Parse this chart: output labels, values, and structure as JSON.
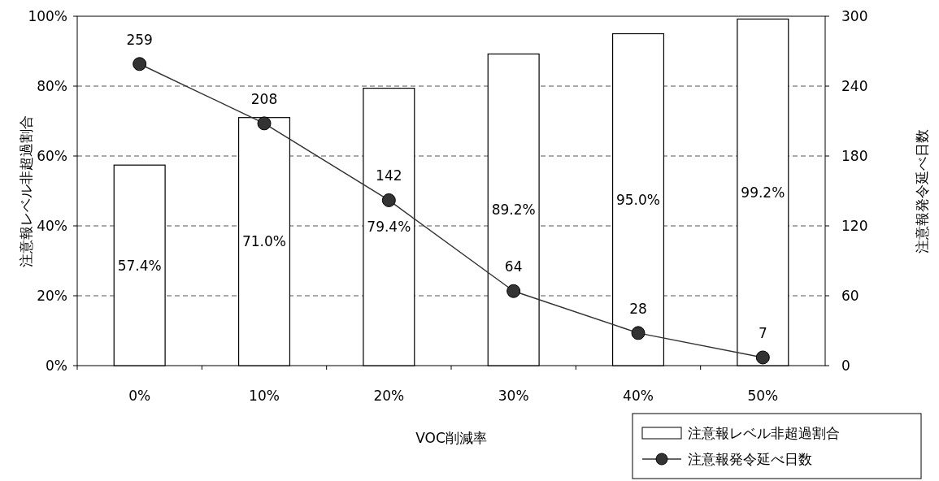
{
  "chart_data": {
    "type": "bar",
    "xlabel": "VOC削減率",
    "ylabel": "注意報レベル非超過割合",
    "y2label": "注意報発令延べ日数",
    "categories": [
      "0%",
      "10%",
      "20%",
      "30%",
      "40%",
      "50%"
    ],
    "series": [
      {
        "name": "注意報レベル非超過割合",
        "color": "#ffffff",
        "values": [
          57.4,
          71.0,
          79.4,
          89.2,
          95.0,
          99.2
        ],
        "value_labels": [
          "57.4%",
          "71.0%",
          "79.4%",
          "89.2%",
          "95.0%",
          "99.2%"
        ]
      },
      {
        "name": "注意報発令延べ日数",
        "type": "line",
        "axis": "y2",
        "color": "#333333",
        "marker": "circle",
        "line_style": "solid",
        "values": [
          259,
          208,
          142,
          64,
          28,
          7
        ],
        "value_labels": [
          "259",
          "208",
          "142",
          "64",
          "28",
          "7"
        ]
      }
    ],
    "ylim": [
      0,
      100
    ],
    "yticks": [
      {
        "value": 0,
        "label": "0%"
      },
      {
        "value": 20,
        "label": "20%"
      },
      {
        "value": 40,
        "label": "40%"
      },
      {
        "value": 60,
        "label": "60%"
      },
      {
        "value": 80,
        "label": "80%"
      },
      {
        "value": 100,
        "label": "100%"
      }
    ],
    "y2lim": [
      0,
      300
    ],
    "y2ticks": [
      0,
      60,
      120,
      180,
      240,
      300
    ],
    "grid": "y",
    "legend": "bottom right"
  }
}
